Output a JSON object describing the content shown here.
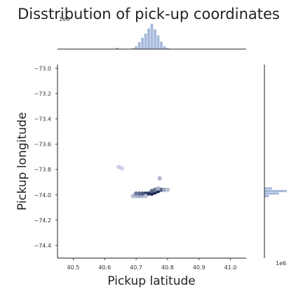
{
  "chart_data": {
    "type": "heatmap",
    "subtype": "hexbin-joint-plot",
    "title": "Disstribution of pick-up coordinates",
    "xlabel": "Pickup latitude",
    "ylabel": "Pickup longitude",
    "xlim": [
      40.45,
      41.05
    ],
    "ylim": [
      -74.5,
      -72.97
    ],
    "xticks": [
      "40.5",
      "40.6",
      "40.7",
      "40.8",
      "40.9",
      "41.0"
    ],
    "xtick_values": [
      40.5,
      40.6,
      40.7,
      40.8,
      40.9,
      41.0
    ],
    "yticks": [
      "−73.0",
      "−73.2",
      "−73.4",
      "−73.6",
      "−73.8",
      "−74.0",
      "−74.2",
      "−74.4"
    ],
    "ytick_values": [
      -73.0,
      -73.2,
      -73.4,
      -73.6,
      -73.8,
      -74.0,
      -74.2,
      -74.4
    ],
    "top_marginal_offset": "1e6",
    "right_marginal_offset": "1e6",
    "colors": {
      "hex": "#4c72b0",
      "marginal": "#a6b9dc",
      "axis": "#222222"
    },
    "grid": false,
    "hexbins": [
      {
        "x": 40.645,
        "y": -73.78,
        "density": 0.12
      },
      {
        "x": 40.655,
        "y": -73.79,
        "density": 0.1
      },
      {
        "x": 40.69,
        "y": -74.01,
        "density": 0.2
      },
      {
        "x": 40.7,
        "y": -74.01,
        "density": 0.25
      },
      {
        "x": 40.71,
        "y": -74.01,
        "density": 0.3
      },
      {
        "x": 40.72,
        "y": -74.01,
        "density": 0.25
      },
      {
        "x": 40.7,
        "y": -73.99,
        "density": 0.55
      },
      {
        "x": 40.71,
        "y": -73.99,
        "density": 0.6
      },
      {
        "x": 40.72,
        "y": -73.99,
        "density": 0.7
      },
      {
        "x": 40.73,
        "y": -73.99,
        "density": 0.85
      },
      {
        "x": 40.74,
        "y": -73.99,
        "density": 0.9
      },
      {
        "x": 40.75,
        "y": -73.99,
        "density": 1.0
      },
      {
        "x": 40.76,
        "y": -73.98,
        "density": 1.0
      },
      {
        "x": 40.77,
        "y": -73.97,
        "density": 0.95
      },
      {
        "x": 40.78,
        "y": -73.96,
        "density": 0.7
      },
      {
        "x": 40.79,
        "y": -73.96,
        "density": 0.35
      },
      {
        "x": 40.8,
        "y": -73.96,
        "density": 0.2
      },
      {
        "x": 40.76,
        "y": -73.96,
        "density": 0.55
      },
      {
        "x": 40.75,
        "y": -73.97,
        "density": 0.65
      },
      {
        "x": 40.77,
        "y": -73.95,
        "density": 0.3
      },
      {
        "x": 40.73,
        "y": -74.01,
        "density": 0.2
      },
      {
        "x": 40.775,
        "y": -73.87,
        "density": 0.25
      }
    ],
    "top_marginal_bins": [
      {
        "x": 40.64,
        "value": 0.06
      },
      {
        "x": 40.69,
        "value": 0.05
      },
      {
        "x": 40.7,
        "value": 0.12
      },
      {
        "x": 40.71,
        "value": 0.28
      },
      {
        "x": 40.72,
        "value": 0.45
      },
      {
        "x": 40.73,
        "value": 0.62
      },
      {
        "x": 40.74,
        "value": 0.82
      },
      {
        "x": 40.75,
        "value": 1.0
      },
      {
        "x": 40.76,
        "value": 0.78
      },
      {
        "x": 40.77,
        "value": 0.55
      },
      {
        "x": 40.78,
        "value": 0.3
      },
      {
        "x": 40.79,
        "value": 0.12
      },
      {
        "x": 40.8,
        "value": 0.05
      }
    ],
    "right_marginal_bins": [
      {
        "y": -73.95,
        "value": 0.35
      },
      {
        "y": -73.97,
        "value": 1.0
      },
      {
        "y": -73.99,
        "value": 0.65
      },
      {
        "y": -74.01,
        "value": 0.2
      }
    ]
  }
}
